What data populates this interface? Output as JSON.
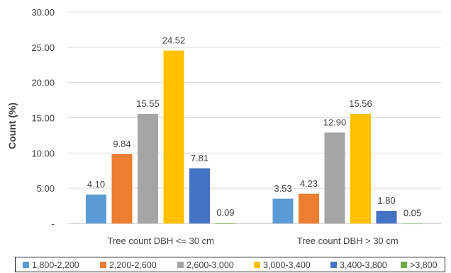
{
  "chart_data": {
    "type": "bar",
    "title": "",
    "xlabel": "",
    "ylabel": "Count (%)",
    "ylim": [
      0,
      30
    ],
    "yticks": [
      "-",
      "5.00",
      "10.00",
      "15.00",
      "20.00",
      "25.00",
      "30.00"
    ],
    "grid": true,
    "legend_position": "bottom",
    "categories": [
      "Tree count DBH <= 30 cm",
      "Tree count DBH > 30 cm"
    ],
    "series": [
      {
        "name": "1,800-2,200",
        "color": "#5B9BD5",
        "values": [
          4.1,
          3.53
        ],
        "labels": [
          "4.10",
          "3.53"
        ]
      },
      {
        "name": "2,200-2,600",
        "color": "#ED7D31",
        "values": [
          9.84,
          4.23
        ],
        "labels": [
          "9.84",
          "4.23"
        ]
      },
      {
        "name": "2,600-3,000",
        "color": "#A5A5A5",
        "values": [
          15.55,
          12.9
        ],
        "labels": [
          "15.55",
          "12.90"
        ]
      },
      {
        "name": "3,000-3,400",
        "color": "#FFC000",
        "values": [
          24.52,
          15.56
        ],
        "labels": [
          "24.52",
          "15.56"
        ]
      },
      {
        "name": "3,400-3,800",
        "color": "#4472C4",
        "values": [
          7.81,
          1.8
        ],
        "labels": [
          "7.81",
          "1.80"
        ]
      },
      {
        "name": ">3,800",
        "color": "#70AD47",
        "values": [
          0.09,
          0.05
        ],
        "labels": [
          "0.09",
          "0.05"
        ]
      }
    ]
  }
}
